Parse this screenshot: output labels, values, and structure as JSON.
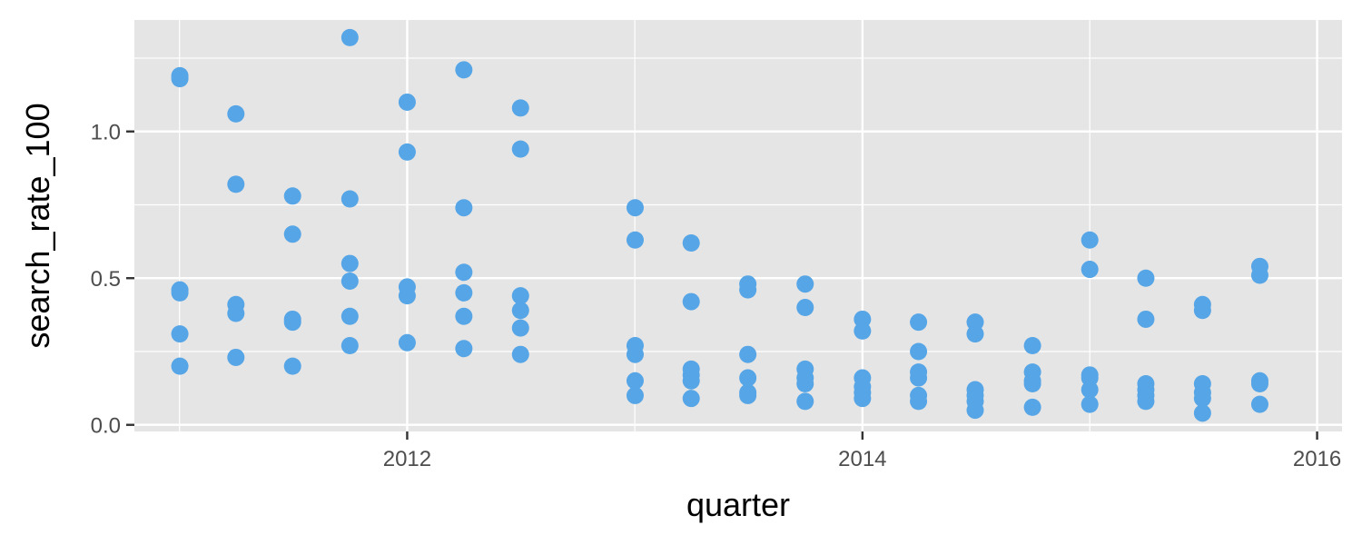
{
  "chart_data": {
    "type": "scatter",
    "title": "",
    "xlabel": "quarter",
    "ylabel": "search_rate_100",
    "x_scale": "date",
    "xlim": [
      "2010-10-20",
      "2016-02-10"
    ],
    "ylim": [
      -0.0225,
      1.38
    ],
    "x_ticks": [
      "2012-01-01",
      "2014-01-01",
      "2016-01-01"
    ],
    "x_tick_labels": [
      "2012",
      "2014",
      "2016"
    ],
    "y_ticks": [
      0.0,
      0.5,
      1.0
    ],
    "y_tick_labels": [
      "0.0",
      "0.5",
      "1.0"
    ],
    "grid": true,
    "legend": "none",
    "colors": {
      "point": "#56a5e6",
      "panel": "#e5e5e5",
      "grid": "#ffffff"
    },
    "points": [
      {
        "x": "2011-01-01",
        "y": 1.19
      },
      {
        "x": "2011-01-01",
        "y": 1.18
      },
      {
        "x": "2011-01-01",
        "y": 0.46
      },
      {
        "x": "2011-01-01",
        "y": 0.45
      },
      {
        "x": "2011-01-01",
        "y": 0.31
      },
      {
        "x": "2011-01-01",
        "y": 0.2
      },
      {
        "x": "2011-04-01",
        "y": 1.06
      },
      {
        "x": "2011-04-01",
        "y": 0.82
      },
      {
        "x": "2011-04-01",
        "y": 0.41
      },
      {
        "x": "2011-04-01",
        "y": 0.38
      },
      {
        "x": "2011-04-01",
        "y": 0.23
      },
      {
        "x": "2011-07-01",
        "y": 0.78
      },
      {
        "x": "2011-07-01",
        "y": 0.65
      },
      {
        "x": "2011-07-01",
        "y": 0.36
      },
      {
        "x": "2011-07-01",
        "y": 0.35
      },
      {
        "x": "2011-07-01",
        "y": 0.2
      },
      {
        "x": "2011-10-01",
        "y": 1.32
      },
      {
        "x": "2011-10-01",
        "y": 0.77
      },
      {
        "x": "2011-10-01",
        "y": 0.55
      },
      {
        "x": "2011-10-01",
        "y": 0.49
      },
      {
        "x": "2011-10-01",
        "y": 0.37
      },
      {
        "x": "2011-10-01",
        "y": 0.27
      },
      {
        "x": "2012-01-01",
        "y": 1.1
      },
      {
        "x": "2012-01-01",
        "y": 0.93
      },
      {
        "x": "2012-01-01",
        "y": 0.47
      },
      {
        "x": "2012-01-01",
        "y": 0.44
      },
      {
        "x": "2012-01-01",
        "y": 0.28
      },
      {
        "x": "2012-04-01",
        "y": 1.21
      },
      {
        "x": "2012-04-01",
        "y": 0.74
      },
      {
        "x": "2012-04-01",
        "y": 0.52
      },
      {
        "x": "2012-04-01",
        "y": 0.45
      },
      {
        "x": "2012-04-01",
        "y": 0.37
      },
      {
        "x": "2012-04-01",
        "y": 0.26
      },
      {
        "x": "2012-07-01",
        "y": 1.08
      },
      {
        "x": "2012-07-01",
        "y": 0.94
      },
      {
        "x": "2012-07-01",
        "y": 0.44
      },
      {
        "x": "2012-07-01",
        "y": 0.39
      },
      {
        "x": "2012-07-01",
        "y": 0.33
      },
      {
        "x": "2012-07-01",
        "y": 0.24
      },
      {
        "x": "2013-01-01",
        "y": 0.74
      },
      {
        "x": "2013-01-01",
        "y": 0.63
      },
      {
        "x": "2013-01-01",
        "y": 0.27
      },
      {
        "x": "2013-01-01",
        "y": 0.24
      },
      {
        "x": "2013-01-01",
        "y": 0.15
      },
      {
        "x": "2013-01-01",
        "y": 0.1
      },
      {
        "x": "2013-04-01",
        "y": 0.62
      },
      {
        "x": "2013-04-01",
        "y": 0.42
      },
      {
        "x": "2013-04-01",
        "y": 0.19
      },
      {
        "x": "2013-04-01",
        "y": 0.17
      },
      {
        "x": "2013-04-01",
        "y": 0.15
      },
      {
        "x": "2013-04-01",
        "y": 0.09
      },
      {
        "x": "2013-07-01",
        "y": 0.48
      },
      {
        "x": "2013-07-01",
        "y": 0.46
      },
      {
        "x": "2013-07-01",
        "y": 0.24
      },
      {
        "x": "2013-07-01",
        "y": 0.16
      },
      {
        "x": "2013-07-01",
        "y": 0.11
      },
      {
        "x": "2013-07-01",
        "y": 0.1
      },
      {
        "x": "2013-10-01",
        "y": 0.48
      },
      {
        "x": "2013-10-01",
        "y": 0.4
      },
      {
        "x": "2013-10-01",
        "y": 0.19
      },
      {
        "x": "2013-10-01",
        "y": 0.16
      },
      {
        "x": "2013-10-01",
        "y": 0.14
      },
      {
        "x": "2013-10-01",
        "y": 0.08
      },
      {
        "x": "2014-01-01",
        "y": 0.36
      },
      {
        "x": "2014-01-01",
        "y": 0.32
      },
      {
        "x": "2014-01-01",
        "y": 0.16
      },
      {
        "x": "2014-01-01",
        "y": 0.13
      },
      {
        "x": "2014-01-01",
        "y": 0.11
      },
      {
        "x": "2014-01-01",
        "y": 0.09
      },
      {
        "x": "2014-04-01",
        "y": 0.35
      },
      {
        "x": "2014-04-01",
        "y": 0.25
      },
      {
        "x": "2014-04-01",
        "y": 0.18
      },
      {
        "x": "2014-04-01",
        "y": 0.16
      },
      {
        "x": "2014-04-01",
        "y": 0.1
      },
      {
        "x": "2014-04-01",
        "y": 0.08
      },
      {
        "x": "2014-07-01",
        "y": 0.35
      },
      {
        "x": "2014-07-01",
        "y": 0.31
      },
      {
        "x": "2014-07-01",
        "y": 0.12
      },
      {
        "x": "2014-07-01",
        "y": 0.1
      },
      {
        "x": "2014-07-01",
        "y": 0.08
      },
      {
        "x": "2014-07-01",
        "y": 0.05
      },
      {
        "x": "2014-10-01",
        "y": 0.27
      },
      {
        "x": "2014-10-01",
        "y": 0.18
      },
      {
        "x": "2014-10-01",
        "y": 0.15
      },
      {
        "x": "2014-10-01",
        "y": 0.14
      },
      {
        "x": "2014-10-01",
        "y": 0.06
      },
      {
        "x": "2015-01-01",
        "y": 0.63
      },
      {
        "x": "2015-01-01",
        "y": 0.53
      },
      {
        "x": "2015-01-01",
        "y": 0.17
      },
      {
        "x": "2015-01-01",
        "y": 0.16
      },
      {
        "x": "2015-01-01",
        "y": 0.12
      },
      {
        "x": "2015-01-01",
        "y": 0.07
      },
      {
        "x": "2015-04-01",
        "y": 0.5
      },
      {
        "x": "2015-04-01",
        "y": 0.36
      },
      {
        "x": "2015-04-01",
        "y": 0.14
      },
      {
        "x": "2015-04-01",
        "y": 0.12
      },
      {
        "x": "2015-04-01",
        "y": 0.1
      },
      {
        "x": "2015-04-01",
        "y": 0.08
      },
      {
        "x": "2015-07-01",
        "y": 0.41
      },
      {
        "x": "2015-07-01",
        "y": 0.39
      },
      {
        "x": "2015-07-01",
        "y": 0.14
      },
      {
        "x": "2015-07-01",
        "y": 0.11
      },
      {
        "x": "2015-07-01",
        "y": 0.09
      },
      {
        "x": "2015-07-01",
        "y": 0.04
      },
      {
        "x": "2015-10-01",
        "y": 0.54
      },
      {
        "x": "2015-10-01",
        "y": 0.51
      },
      {
        "x": "2015-10-01",
        "y": 0.15
      },
      {
        "x": "2015-10-01",
        "y": 0.14
      },
      {
        "x": "2015-10-01",
        "y": 0.07
      }
    ]
  }
}
